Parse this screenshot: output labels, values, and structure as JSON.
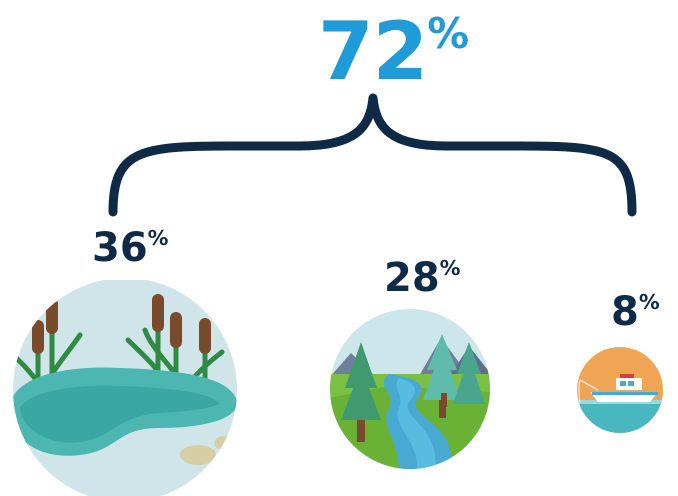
{
  "total": {
    "value": "72",
    "unit": "%"
  },
  "items": [
    {
      "value": "36",
      "unit": "%",
      "icon": "wetland-cattails-icon"
    },
    {
      "value": "28",
      "unit": "%",
      "icon": "river-forest-icon"
    },
    {
      "value": "8",
      "unit": "%",
      "icon": "boat-ocean-icon"
    }
  ],
  "colors": {
    "accent": "#1f9bd7",
    "text": "#0e2a47",
    "brace": "#0e2a47"
  }
}
